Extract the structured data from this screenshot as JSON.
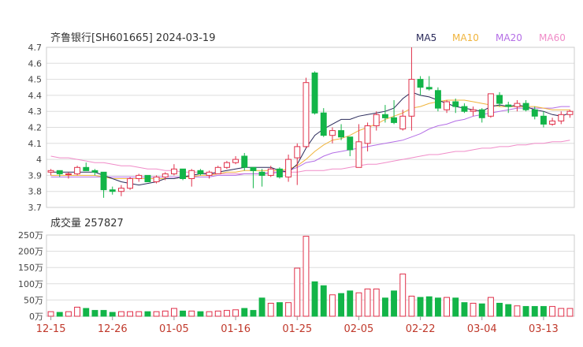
{
  "header": {
    "title": "齐鲁银行[SH601665] 2024-03-19",
    "legend": [
      {
        "label": "MA5",
        "color": "#2a2a5a"
      },
      {
        "label": "MA10",
        "color": "#f0b43c"
      },
      {
        "label": "MA20",
        "color": "#b46ee6"
      },
      {
        "label": "MA60",
        "color": "#f08cc8"
      }
    ]
  },
  "volume_panel": {
    "title": "成交量 257827"
  },
  "colors": {
    "up": "#e0304a",
    "down": "#12b548",
    "grid": "#dddddd",
    "axis_text": "#444444",
    "date_text": "#c0392b"
  },
  "chart_data": [
    {
      "type": "candlestick",
      "title": "齐鲁银行[SH601665] 2024-03-19",
      "ylim": [
        3.7,
        4.7
      ],
      "y_ticks": [
        "3.7",
        "3.8",
        "3.9",
        "4",
        "4.1",
        "4.2",
        "4.3",
        "4.4",
        "4.5",
        "4.6",
        "4.7"
      ],
      "x_tick_labels": [
        "12-15",
        "12-26",
        "01-05",
        "01-16",
        "01-25",
        "02-05",
        "02-22",
        "03-04",
        "03-13"
      ],
      "x_tick_indices": [
        0,
        7,
        14,
        21,
        28,
        35,
        42,
        49,
        56
      ],
      "ohlc": [
        [
          3.92,
          3.94,
          3.9,
          3.93
        ],
        [
          3.93,
          3.93,
          3.89,
          3.91
        ],
        [
          3.91,
          3.92,
          3.88,
          3.91
        ],
        [
          3.91,
          3.96,
          3.9,
          3.95
        ],
        [
          3.95,
          3.98,
          3.93,
          3.93
        ],
        [
          3.93,
          3.94,
          3.9,
          3.92
        ],
        [
          3.92,
          3.92,
          3.76,
          3.81
        ],
        [
          3.81,
          3.83,
          3.78,
          3.8
        ],
        [
          3.8,
          3.84,
          3.77,
          3.82
        ],
        [
          3.82,
          3.89,
          3.81,
          3.88
        ],
        [
          3.88,
          3.91,
          3.86,
          3.9
        ],
        [
          3.9,
          3.9,
          3.86,
          3.86
        ],
        [
          3.86,
          3.9,
          3.85,
          3.89
        ],
        [
          3.89,
          3.92,
          3.87,
          3.91
        ],
        [
          3.91,
          3.97,
          3.9,
          3.94
        ],
        [
          3.94,
          3.94,
          3.87,
          3.88
        ],
        [
          3.88,
          3.94,
          3.83,
          3.93
        ],
        [
          3.93,
          3.94,
          3.9,
          3.91
        ],
        [
          3.9,
          3.93,
          3.88,
          3.92
        ],
        [
          3.91,
          3.96,
          3.91,
          3.95
        ],
        [
          3.95,
          3.99,
          3.94,
          3.98
        ],
        [
          3.98,
          4.02,
          3.97,
          4.0
        ],
        [
          4.02,
          4.04,
          3.93,
          3.95
        ],
        [
          3.95,
          3.95,
          3.82,
          3.93
        ],
        [
          3.92,
          3.94,
          3.83,
          3.9
        ],
        [
          3.9,
          3.96,
          3.89,
          3.94
        ],
        [
          3.94,
          3.95,
          3.88,
          3.89
        ],
        [
          3.89,
          4.03,
          3.86,
          4.0
        ],
        [
          4.01,
          4.1,
          3.84,
          4.08
        ],
        [
          4.08,
          4.51,
          4.07,
          4.48
        ],
        [
          4.54,
          4.55,
          4.28,
          4.29
        ],
        [
          4.29,
          4.32,
          4.14,
          4.15
        ],
        [
          4.15,
          4.2,
          4.1,
          4.18
        ],
        [
          4.18,
          4.22,
          4.12,
          4.14
        ],
        [
          4.14,
          4.14,
          4.02,
          4.06
        ],
        [
          3.95,
          4.22,
          3.95,
          4.11
        ],
        [
          4.1,
          4.23,
          4.05,
          4.21
        ],
        [
          4.21,
          4.3,
          4.18,
          4.28
        ],
        [
          4.28,
          4.34,
          4.23,
          4.26
        ],
        [
          4.26,
          4.37,
          4.22,
          4.23
        ],
        [
          4.19,
          4.31,
          4.18,
          4.27
        ],
        [
          4.27,
          4.7,
          4.18,
          4.5
        ],
        [
          4.5,
          4.52,
          4.4,
          4.45
        ],
        [
          4.45,
          4.52,
          4.43,
          4.44
        ],
        [
          4.43,
          4.45,
          4.3,
          4.32
        ],
        [
          4.31,
          4.37,
          4.29,
          4.36
        ],
        [
          4.36,
          4.38,
          4.29,
          4.33
        ],
        [
          4.33,
          4.35,
          4.29,
          4.3
        ],
        [
          4.3,
          4.33,
          4.27,
          4.31
        ],
        [
          4.31,
          4.32,
          4.23,
          4.26
        ],
        [
          4.27,
          4.41,
          4.26,
          4.41
        ],
        [
          4.4,
          4.42,
          4.33,
          4.35
        ],
        [
          4.34,
          4.36,
          4.29,
          4.33
        ],
        [
          4.33,
          4.37,
          4.3,
          4.35
        ],
        [
          4.35,
          4.37,
          4.3,
          4.31
        ],
        [
          4.31,
          4.33,
          4.25,
          4.27
        ],
        [
          4.27,
          4.3,
          4.2,
          4.22
        ],
        [
          4.22,
          4.26,
          4.21,
          4.24
        ],
        [
          4.24,
          4.3,
          4.22,
          4.28
        ],
        [
          4.28,
          4.31,
          4.26,
          4.3
        ]
      ],
      "ma5": [
        3.92,
        3.92,
        3.92,
        3.92,
        3.92,
        3.92,
        3.9,
        3.88,
        3.86,
        3.85,
        3.84,
        3.85,
        3.86,
        3.88,
        3.88,
        3.89,
        3.9,
        3.91,
        3.91,
        3.92,
        3.93,
        3.94,
        3.95,
        3.95,
        3.95,
        3.95,
        3.93,
        3.92,
        3.97,
        4.07,
        4.15,
        4.19,
        4.22,
        4.25,
        4.25,
        4.27,
        4.28,
        4.29,
        4.3,
        4.32,
        4.38,
        4.42,
        4.4,
        4.39,
        4.37,
        4.35,
        4.33,
        4.32,
        4.31,
        4.3,
        4.33,
        4.34,
        4.33,
        4.34,
        4.33,
        4.31,
        4.3,
        4.28,
        4.27,
        4.29
      ],
      "ma10": [
        3.9,
        3.9,
        3.9,
        3.9,
        3.9,
        3.9,
        3.89,
        3.88,
        3.88,
        3.88,
        3.88,
        3.88,
        3.88,
        3.88,
        3.88,
        3.89,
        3.89,
        3.9,
        3.9,
        3.91,
        3.92,
        3.92,
        3.93,
        3.93,
        3.93,
        3.93,
        3.93,
        3.94,
        3.96,
        4.0,
        4.05,
        4.09,
        4.12,
        4.13,
        4.15,
        4.18,
        4.2,
        4.22,
        4.25,
        4.27,
        4.29,
        4.32,
        4.33,
        4.35,
        4.36,
        4.37,
        4.37,
        4.37,
        4.36,
        4.35,
        4.34,
        4.33,
        4.33,
        4.33,
        4.33,
        4.33,
        4.32,
        4.31,
        4.31,
        4.31
      ],
      "ma20": [
        3.89,
        3.89,
        3.89,
        3.89,
        3.89,
        3.89,
        3.89,
        3.89,
        3.89,
        3.89,
        3.89,
        3.89,
        3.89,
        3.89,
        3.89,
        3.89,
        3.89,
        3.89,
        3.89,
        3.9,
        3.9,
        3.9,
        3.91,
        3.91,
        3.91,
        3.92,
        3.92,
        3.93,
        3.95,
        3.98,
        3.99,
        4.02,
        4.04,
        4.05,
        4.06,
        4.07,
        4.08,
        4.09,
        4.1,
        4.11,
        4.12,
        4.14,
        4.16,
        4.19,
        4.21,
        4.22,
        4.24,
        4.25,
        4.27,
        4.28,
        4.29,
        4.3,
        4.31,
        4.32,
        4.32,
        4.32,
        4.32,
        4.32,
        4.33,
        4.33
      ],
      "ma60": [
        4.02,
        4.01,
        4.01,
        4.0,
        3.99,
        3.98,
        3.98,
        3.97,
        3.96,
        3.96,
        3.95,
        3.94,
        3.94,
        3.93,
        3.93,
        3.92,
        3.92,
        3.92,
        3.91,
        3.91,
        3.91,
        3.91,
        3.91,
        3.91,
        3.91,
        3.91,
        3.92,
        3.92,
        3.92,
        3.93,
        3.93,
        3.93,
        3.94,
        3.94,
        3.95,
        3.96,
        3.97,
        3.97,
        3.98,
        3.99,
        4.0,
        4.01,
        4.02,
        4.03,
        4.03,
        4.04,
        4.05,
        4.05,
        4.06,
        4.07,
        4.07,
        4.08,
        4.08,
        4.09,
        4.09,
        4.1,
        4.1,
        4.11,
        4.11,
        4.12
      ]
    },
    {
      "type": "bar",
      "title": "成交量 257827",
      "unit": "万",
      "ylim": [
        0,
        250
      ],
      "y_ticks": [
        "250万",
        "200万",
        "150万",
        "100万",
        "50万",
        "0万"
      ],
      "values": [
        14,
        12,
        14,
        28,
        24,
        18,
        18,
        12,
        14,
        14,
        14,
        14,
        14,
        16,
        24,
        16,
        16,
        14,
        14,
        16,
        18,
        20,
        24,
        18,
        56,
        40,
        42,
        42,
        148,
        246,
        106,
        94,
        66,
        70,
        78,
        72,
        84,
        84,
        56,
        78,
        130,
        62,
        58,
        60,
        56,
        58,
        56,
        42,
        40,
        38,
        58,
        40,
        36,
        32,
        30,
        30,
        30,
        30,
        24,
        24
      ]
    }
  ]
}
